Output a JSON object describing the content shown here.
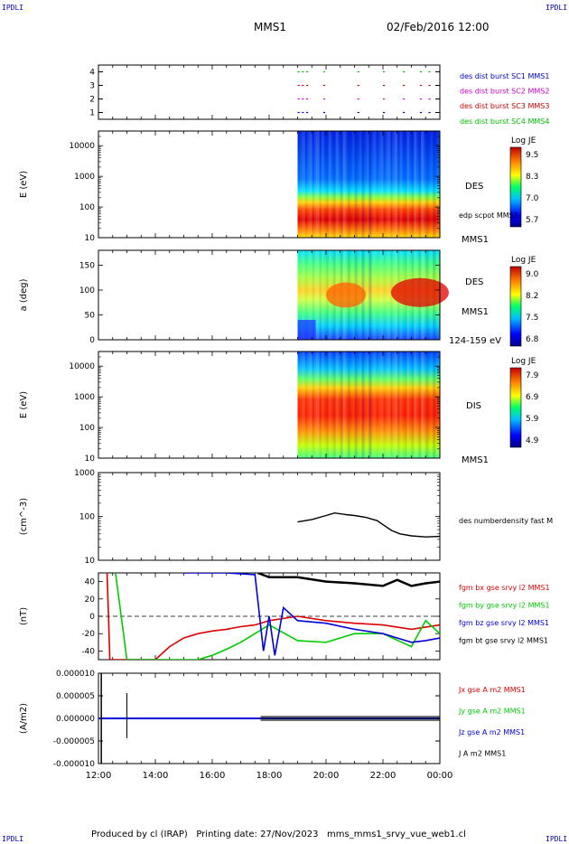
{
  "corners": {
    "top_left": "IPDLI",
    "top_right": "IPDLI",
    "bottom_left": "IPDLI",
    "bottom_right": "IPDLI"
  },
  "header": {
    "spacecraft": "MMS1",
    "datetime": "02/Feb/2016 12:00"
  },
  "footer": {
    "text": "Produced by cl (IRAP)   Printing date: 27/Nov/2023   mms_mms1_srvy_vue_web1.cl"
  },
  "chart_data": [
    {
      "type": "scatter",
      "id": "availability",
      "yticks": [
        "1",
        "2",
        "3",
        "4"
      ],
      "labels": [
        {
          "text": "des dist burst SC1 MMS1",
          "color": "#0000cc"
        },
        {
          "text": "des dist burst SC2 MMS2",
          "color": "#cc00cc"
        },
        {
          "text": "des dist burst SC3 MMS3",
          "color": "#cc0000"
        },
        {
          "text": "des dist burst SC4 MMS4",
          "color": "#00bb00"
        }
      ],
      "series": [
        {
          "level": 4,
          "color": "#00bb00",
          "x": [
            19.0,
            19.15,
            19.3,
            19.9,
            21.1,
            22.0,
            22.7,
            23.3,
            23.6
          ]
        },
        {
          "level": 3,
          "color": "#cc0000",
          "x": [
            19.0,
            19.15,
            19.3,
            19.9,
            21.1,
            22.0,
            22.7,
            23.3,
            23.6
          ]
        },
        {
          "level": 2,
          "color": "#cc00cc",
          "x": [
            19.0,
            19.15,
            19.3,
            19.9,
            21.1,
            22.0,
            22.7,
            23.3,
            23.6
          ]
        },
        {
          "level": 1,
          "color": "#0000cc",
          "x": [
            19.0,
            19.15,
            19.3,
            19.9,
            21.1,
            22.0,
            22.7,
            23.3,
            23.6
          ]
        }
      ]
    },
    {
      "type": "heatmap",
      "id": "des-energy",
      "ylabel": "E (eV)",
      "yscale": "log",
      "ylim": [
        10,
        30000
      ],
      "yticks": [
        "10",
        "100",
        "1000",
        "10000"
      ],
      "data_start": 19.0,
      "side_labels": [
        "DES",
        "edp scpot MMS1",
        "MMS1"
      ],
      "colorbar": {
        "title": "Log JE",
        "ticks": [
          "9.5",
          "8.3",
          "7.0",
          "5.7"
        ]
      }
    },
    {
      "type": "heatmap",
      "id": "des-pitch",
      "ylabel": "a (deg)",
      "ylim": [
        0,
        180
      ],
      "yticks": [
        "0",
        "50",
        "100",
        "150"
      ],
      "data_start": 19.0,
      "side_labels": [
        "DES",
        "MMS1",
        "124-159 eV"
      ],
      "colorbar": {
        "title": "Log JE",
        "ticks": [
          "9.0",
          "8.2",
          "7.5",
          "6.8"
        ]
      }
    },
    {
      "type": "heatmap",
      "id": "dis-energy",
      "ylabel": "E (eV)",
      "yscale": "log",
      "ylim": [
        10,
        30000
      ],
      "yticks": [
        "10",
        "100",
        "1000",
        "10000"
      ],
      "data_start": 19.0,
      "side_labels": [
        "DIS",
        "MMS1"
      ],
      "colorbar": {
        "title": "Log JE",
        "ticks": [
          "7.9",
          "6.9",
          "5.9",
          "4.9"
        ]
      }
    },
    {
      "type": "line",
      "id": "density",
      "ylabel": "(cm^-3)",
      "yscale": "log",
      "ylim": [
        10,
        1000
      ],
      "yticks": [
        "10",
        "100",
        "1000"
      ],
      "series": [
        {
          "name": "des numberdensity fast M",
          "color": "#000000",
          "x": [
            19.0,
            19.5,
            20.0,
            20.3,
            20.7,
            21.0,
            21.4,
            21.8,
            22.0,
            22.3,
            22.6,
            23.0,
            23.5,
            24.0
          ],
          "y": [
            75,
            85,
            105,
            120,
            110,
            105,
            95,
            80,
            65,
            48,
            40,
            36,
            34,
            35
          ]
        }
      ]
    },
    {
      "type": "line",
      "id": "magnetic-field",
      "ylabel": "(nT)",
      "ylim": [
        -50,
        50
      ],
      "yticks": [
        "-40",
        "-20",
        "0",
        "20",
        "40"
      ],
      "series": [
        {
          "name": "fgm bx gse srvy l2 MMS1",
          "color": "#dd0000",
          "x": [
            12.3,
            12.35,
            12.4,
            14.0,
            14.5,
            15.0,
            15.5,
            16.0,
            16.5,
            17.0,
            17.5,
            18.0,
            19.0,
            20.0,
            21.0,
            22.0,
            23.0,
            24.0
          ],
          "y": [
            50,
            5,
            -50,
            -50,
            -35,
            -25,
            -20,
            -17,
            -15,
            -12,
            -10,
            -5,
            0,
            -5,
            -8,
            -10,
            -15,
            -10
          ]
        },
        {
          "name": "fgm by gse srvy l2 MMS1",
          "color": "#00cc00",
          "x": [
            12.6,
            13.0,
            15.5,
            16.0,
            16.5,
            17.0,
            17.5,
            18.0,
            19.0,
            20.0,
            21.0,
            22.0,
            23.0,
            23.5,
            24.0
          ],
          "y": [
            50,
            -50,
            -50,
            -45,
            -38,
            -30,
            -20,
            -10,
            -28,
            -30,
            -20,
            -20,
            -35,
            -5,
            -20
          ]
        },
        {
          "name": "fgm bz gse srvy l2 MMS1",
          "color": "#0000dd",
          "x": [
            15.0,
            16.5,
            17.5,
            17.8,
            18.0,
            18.2,
            18.5,
            19.0,
            20.0,
            21.0,
            22.0,
            22.5,
            23.0,
            23.5,
            24.0
          ],
          "y": [
            50,
            50,
            48,
            -40,
            0,
            -45,
            10,
            -5,
            -8,
            -15,
            -20,
            -25,
            -30,
            -28,
            -25
          ]
        },
        {
          "name": "fgm bt gse srvy l2 MMS1",
          "color": "#000000",
          "x": [
            17.6,
            18.0,
            19.0,
            20.0,
            21.0,
            22.0,
            22.5,
            23.0,
            23.5,
            24.0
          ],
          "y": [
            50,
            45,
            45,
            40,
            38,
            35,
            42,
            35,
            38,
            40
          ]
        }
      ],
      "zero_line": true
    },
    {
      "type": "line",
      "id": "current-density",
      "ylabel": "(A/m2)",
      "ylim": [
        -0.0001,
        0.0001
      ],
      "yticks": [
        "-0.000010",
        "-0.000005",
        "0.000000",
        "0.000005",
        "0.000010"
      ],
      "xlim": [
        12,
        24
      ],
      "xticks": [
        "12:00",
        "14:00",
        "16:00",
        "18:00",
        "20:00",
        "22:00",
        "00:00"
      ],
      "series": [
        {
          "name": "Jx gse A m2 MMS1",
          "color": "#dd0000"
        },
        {
          "name": "Jy gse A m2 MMS1",
          "color": "#00cc00"
        },
        {
          "name": "Jz gse A m2 MMS1",
          "color": "#0000dd"
        },
        {
          "name": "J A m2 MMS1",
          "color": "#000000"
        }
      ]
    }
  ]
}
